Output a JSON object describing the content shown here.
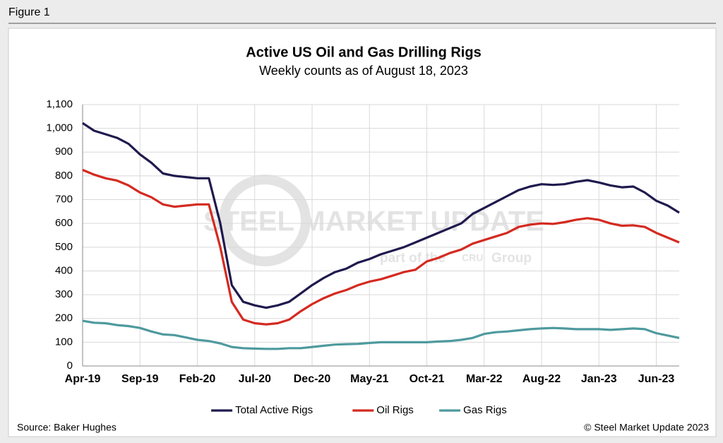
{
  "figure_label": "Figure 1",
  "source": "Source: Baker Hughes",
  "copyright": "© Steel Market Update 2023",
  "watermark": {
    "brand": "STEEL MARKET UPDATE",
    "tagline": "part of the",
    "logo": "CRU",
    "group": "Group"
  },
  "chart_data": {
    "type": "line",
    "title": "Active US Oil and Gas Drilling Rigs",
    "subtitle": "Weekly counts as of August 18, 2023",
    "categories": [
      "Apr-19",
      null,
      null,
      null,
      null,
      "Sep-19",
      null,
      null,
      null,
      null,
      "Feb-20",
      null,
      null,
      null,
      null,
      "Jul-20",
      null,
      null,
      null,
      null,
      "Dec-20",
      null,
      null,
      null,
      null,
      "May-21",
      null,
      null,
      null,
      null,
      "Oct-21",
      null,
      null,
      null,
      null,
      "Mar-22",
      null,
      null,
      null,
      null,
      "Aug-22",
      null,
      null,
      null,
      null,
      "Jan-23",
      null,
      null,
      null,
      null,
      "Jun-23",
      null,
      null
    ],
    "series": [
      {
        "name": "Total Active Rigs",
        "color": "#1f1a4d",
        "values": [
          1022,
          990,
          975,
          960,
          935,
          890,
          855,
          810,
          800,
          795,
          790,
          790,
          600,
          340,
          270,
          255,
          245,
          255,
          270,
          305,
          340,
          370,
          395,
          410,
          435,
          450,
          470,
          485,
          500,
          520,
          540,
          560,
          580,
          600,
          640,
          665,
          690,
          715,
          740,
          755,
          765,
          762,
          765,
          775,
          782,
          772,
          760,
          752,
          755,
          730,
          695,
          675,
          645
        ]
      },
      {
        "name": "Oil Rigs",
        "color": "#d42a20",
        "values": [
          825,
          805,
          790,
          780,
          760,
          730,
          710,
          680,
          670,
          675,
          680,
          680,
          500,
          270,
          195,
          180,
          175,
          180,
          195,
          230,
          260,
          285,
          305,
          320,
          340,
          355,
          365,
          380,
          395,
          405,
          440,
          455,
          475,
          490,
          515,
          530,
          545,
          560,
          585,
          595,
          600,
          598,
          605,
          615,
          622,
          615,
          600,
          590,
          592,
          585,
          560,
          540,
          520
        ]
      },
      {
        "name": "Gas Rigs",
        "color": "#4e9a9e",
        "values": [
          190,
          182,
          180,
          172,
          168,
          160,
          145,
          133,
          130,
          120,
          110,
          105,
          95,
          80,
          75,
          73,
          72,
          72,
          75,
          75,
          80,
          85,
          90,
          92,
          93,
          97,
          100,
          100,
          100,
          100,
          100,
          103,
          105,
          110,
          118,
          135,
          142,
          145,
          150,
          155,
          158,
          160,
          158,
          155,
          155,
          155,
          152,
          155,
          158,
          155,
          138,
          128,
          118
        ]
      }
    ],
    "ylim": [
      0,
      1100
    ],
    "yticks": [
      0,
      100,
      200,
      300,
      400,
      500,
      600,
      700,
      800,
      900,
      {
        "value": 1000,
        "label": "1,000"
      },
      {
        "value": 1100,
        "label": "1,100"
      }
    ],
    "grid": true,
    "legend": "bottom"
  }
}
